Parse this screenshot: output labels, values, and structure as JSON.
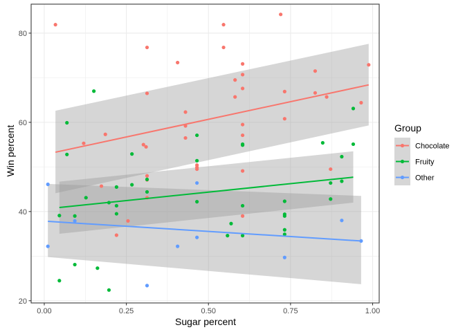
{
  "chart_data": {
    "type": "scatter",
    "xlabel": "Sugar percent",
    "ylabel": "Win percent",
    "xlim": [
      -0.04,
      1.02
    ],
    "ylim": [
      19.5,
      86.5
    ],
    "x_ticks": [
      0.0,
      0.25,
      0.5,
      0.75,
      1.0
    ],
    "x_tick_labels": [
      "0.00",
      "0.25",
      "0.50",
      "0.75",
      "1.00"
    ],
    "y_ticks": [
      20,
      40,
      60,
      80
    ],
    "y_tick_labels": [
      "20",
      "40",
      "60",
      "80"
    ],
    "grid": true,
    "legend": {
      "title": "Group",
      "position": "right",
      "entries": [
        "Chocolate",
        "Fruity",
        "Other"
      ]
    },
    "series": [
      {
        "name": "Chocolate",
        "color": "#F8766D",
        "points": [
          [
            0.034,
            81.9
          ],
          [
            0.12,
            55.3
          ],
          [
            0.186,
            57.3
          ],
          [
            0.174,
            45.7
          ],
          [
            0.22,
            34.7
          ],
          [
            0.255,
            37.9
          ],
          [
            0.302,
            55.0
          ],
          [
            0.31,
            54.5
          ],
          [
            0.313,
            76.8
          ],
          [
            0.313,
            66.5
          ],
          [
            0.313,
            48.0
          ],
          [
            0.313,
            47.1
          ],
          [
            0.313,
            43.1
          ],
          [
            0.406,
            73.4
          ],
          [
            0.43,
            59.2
          ],
          [
            0.43,
            56.5
          ],
          [
            0.43,
            62.3
          ],
          [
            0.465,
            50.4
          ],
          [
            0.465,
            49.9
          ],
          [
            0.465,
            49.5
          ],
          [
            0.546,
            81.9
          ],
          [
            0.546,
            76.8
          ],
          [
            0.581,
            65.7
          ],
          [
            0.581,
            69.5
          ],
          [
            0.604,
            73.1
          ],
          [
            0.604,
            70.7
          ],
          [
            0.604,
            67.6
          ],
          [
            0.604,
            59.5
          ],
          [
            0.604,
            57.1
          ],
          [
            0.604,
            49.1
          ],
          [
            0.604,
            39.0
          ],
          [
            0.72,
            84.2
          ],
          [
            0.732,
            66.9
          ],
          [
            0.732,
            60.8
          ],
          [
            0.825,
            71.5
          ],
          [
            0.825,
            66.6
          ],
          [
            0.86,
            65.7
          ],
          [
            0.872,
            49.5
          ],
          [
            0.965,
            64.4
          ],
          [
            0.988,
            72.9
          ]
        ],
        "fit": {
          "x": [
            0.034,
            0.988
          ],
          "y": [
            53.3,
            68.4
          ],
          "se_lower": [
            44.1,
            59.3
          ],
          "se_upper": [
            62.6,
            77.6
          ]
        }
      },
      {
        "name": "Fruity",
        "color": "#00BA38",
        "points": [
          [
            0.046,
            39.1
          ],
          [
            0.046,
            24.5
          ],
          [
            0.069,
            59.9
          ],
          [
            0.069,
            52.8
          ],
          [
            0.093,
            39.0
          ],
          [
            0.093,
            28.1
          ],
          [
            0.127,
            43.1
          ],
          [
            0.151,
            67.0
          ],
          [
            0.162,
            27.3
          ],
          [
            0.197,
            22.4
          ],
          [
            0.197,
            42.0
          ],
          [
            0.22,
            45.5
          ],
          [
            0.22,
            41.3
          ],
          [
            0.22,
            39.5
          ],
          [
            0.267,
            46.0
          ],
          [
            0.267,
            52.9
          ],
          [
            0.313,
            47.2
          ],
          [
            0.313,
            44.4
          ],
          [
            0.465,
            57.1
          ],
          [
            0.465,
            51.4
          ],
          [
            0.465,
            42.2
          ],
          [
            0.558,
            34.6
          ],
          [
            0.569,
            37.3
          ],
          [
            0.604,
            54.9
          ],
          [
            0.604,
            55.1
          ],
          [
            0.604,
            41.3
          ],
          [
            0.604,
            34.6
          ],
          [
            0.732,
            42.3
          ],
          [
            0.732,
            39.4
          ],
          [
            0.732,
            39.0
          ],
          [
            0.732,
            35.9
          ],
          [
            0.732,
            34.9
          ],
          [
            0.848,
            55.4
          ],
          [
            0.872,
            46.4
          ],
          [
            0.872,
            42.8
          ],
          [
            0.906,
            52.3
          ],
          [
            0.906,
            46.8
          ],
          [
            0.941,
            63.1
          ],
          [
            0.941,
            55.1
          ]
        ],
        "fit": {
          "x": [
            0.046,
            0.941
          ],
          "y": [
            40.9,
            47.7
          ],
          "se_lower": [
            35.0,
            42.0
          ],
          "se_upper": [
            46.7,
            53.5
          ]
        }
      },
      {
        "name": "Other",
        "color": "#619CFF",
        "points": [
          [
            0.011,
            46.1
          ],
          [
            0.011,
            32.2
          ],
          [
            0.093,
            37.9
          ],
          [
            0.406,
            32.2
          ],
          [
            0.313,
            23.4
          ],
          [
            0.465,
            46.4
          ],
          [
            0.465,
            34.2
          ],
          [
            0.732,
            29.7
          ],
          [
            0.906,
            38.0
          ],
          [
            0.965,
            33.4
          ]
        ],
        "fit": {
          "x": [
            0.011,
            0.965
          ],
          "y": [
            37.8,
            33.4
          ],
          "se_lower": [
            29.8,
            23.7
          ],
          "se_upper": [
            46.2,
            43.5
          ]
        }
      }
    ]
  }
}
